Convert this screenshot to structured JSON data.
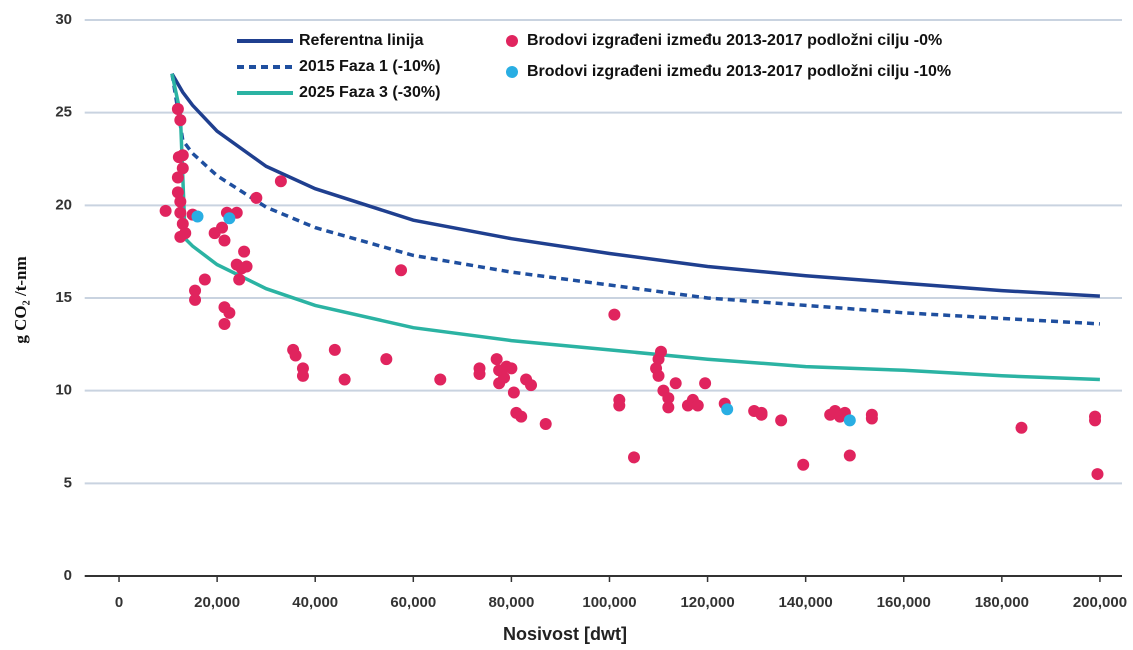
{
  "chart_data": {
    "type": "line",
    "xlabel": "Nosivost [dwt]",
    "ylabel": "g CO₂ /t-nm",
    "xlim": [
      -7000,
      204500
    ],
    "ylim": [
      0,
      30
    ],
    "xticks": [
      0,
      {
        "value": 20000,
        "label": "20,000"
      },
      {
        "value": 40000,
        "label": "40,000"
      },
      {
        "value": 60000,
        "label": "60,000"
      },
      {
        "value": 80000,
        "label": "80,000"
      },
      {
        "value": 100000,
        "label": "100,000"
      },
      {
        "value": 120000,
        "label": "120,000"
      },
      {
        "value": 140000,
        "label": "140,000"
      },
      {
        "value": 160000,
        "label": "160,000"
      },
      {
        "value": 180000,
        "label": "180,000"
      },
      {
        "value": 200000,
        "label": "200,000"
      }
    ],
    "yticks": [
      0,
      5,
      10,
      15,
      20,
      25,
      30
    ],
    "grid": true,
    "series": [
      {
        "name": "Referentna linija",
        "type": "line",
        "color": "#1f3f8f",
        "dashed": false,
        "x": [
          10800,
          13000,
          15000,
          20000,
          30000,
          40000,
          60000,
          80000,
          100000,
          120000,
          140000,
          160000,
          180000,
          200000
        ],
        "values": [
          27.1,
          26.1,
          25.4,
          24.0,
          22.1,
          20.9,
          19.2,
          18.2,
          17.4,
          16.7,
          16.2,
          15.8,
          15.4,
          15.1
        ]
      },
      {
        "name": "2015 Faza 1 (-10%)",
        "type": "line",
        "color": "#1f4f9f",
        "dashed": true,
        "x": [
          10800,
          13000,
          15000,
          20000,
          30000,
          40000,
          60000,
          80000,
          100000,
          120000,
          140000,
          160000,
          180000,
          200000
        ],
        "values": [
          27.1,
          23.5,
          22.8,
          21.6,
          19.9,
          18.8,
          17.3,
          16.4,
          15.7,
          15.0,
          14.6,
          14.2,
          13.9,
          13.6
        ]
      },
      {
        "name": "2025 Faza 3 (-30%)",
        "type": "line",
        "color": "#2bb3a3",
        "dashed": false,
        "x": [
          10800,
          12500,
          13500,
          15000,
          20000,
          30000,
          40000,
          60000,
          80000,
          100000,
          120000,
          140000,
          160000,
          180000,
          200000
        ],
        "values": [
          27.1,
          25.0,
          18.2,
          17.8,
          16.8,
          15.5,
          14.6,
          13.4,
          12.7,
          12.2,
          11.7,
          11.3,
          11.1,
          10.8,
          10.6
        ]
      },
      {
        "name": "Brodovi izgrađeni između 2013-2017 podložni cilju -0%",
        "type": "scatter",
        "color": "#e0245e",
        "x": [
          9500,
          12000,
          12500,
          12200,
          13000,
          12000,
          13000,
          12000,
          12500,
          12500,
          13000,
          12500,
          13500,
          15000,
          15500,
          15500,
          17500,
          19500,
          21000,
          21500,
          22000,
          24000,
          21500,
          22500,
          21500,
          24000,
          24500,
          25000,
          25500,
          26000,
          28000,
          33000,
          35500,
          36000,
          37500,
          37500,
          44000,
          46000,
          54500,
          57500,
          65500,
          73500,
          73500,
          77000,
          77500,
          77500,
          79000,
          80000,
          78500,
          80500,
          81000,
          82000,
          83000,
          84000,
          87000,
          101000,
          102000,
          102000,
          105000,
          109500,
          110000,
          110500,
          110000,
          111000,
          112000,
          112000,
          113500,
          116000,
          117000,
          118000,
          119500,
          123500,
          129500,
          131000,
          131000,
          135000,
          139500,
          145000,
          146000,
          147000,
          148000,
          149000,
          153500,
          153500,
          184000,
          199000,
          199000,
          199500
        ],
        "values": [
          19.7,
          25.2,
          24.6,
          22.6,
          22.7,
          21.5,
          22.0,
          20.7,
          20.2,
          19.6,
          19.0,
          18.3,
          18.5,
          19.5,
          15.4,
          14.9,
          16.0,
          18.5,
          18.8,
          18.1,
          19.6,
          19.6,
          14.5,
          14.2,
          13.6,
          16.8,
          16.0,
          16.6,
          17.5,
          16.7,
          20.4,
          21.3,
          12.2,
          11.9,
          11.2,
          10.8,
          12.2,
          10.6,
          11.7,
          16.5,
          10.6,
          11.2,
          10.9,
          11.7,
          11.1,
          10.4,
          11.3,
          11.2,
          10.7,
          9.9,
          8.8,
          8.6,
          10.6,
          10.3,
          8.2,
          14.1,
          9.5,
          9.2,
          6.4,
          11.2,
          11.7,
          12.1,
          10.8,
          10.0,
          9.6,
          9.1,
          10.4,
          9.2,
          9.5,
          9.2,
          10.4,
          9.3,
          8.9,
          8.8,
          8.7,
          8.4,
          6.0,
          8.7,
          8.9,
          8.6,
          8.8,
          6.5,
          8.7,
          8.5,
          8.0,
          8.6,
          8.4,
          5.5
        ]
      },
      {
        "name": "Brodovi izgrađeni između 2013-2017 podložni cilju -10%",
        "type": "scatter",
        "color": "#29aee3",
        "x": [
          16000,
          22500,
          124000,
          149000
        ],
        "values": [
          19.4,
          19.3,
          9.0,
          8.4
        ]
      }
    ]
  }
}
